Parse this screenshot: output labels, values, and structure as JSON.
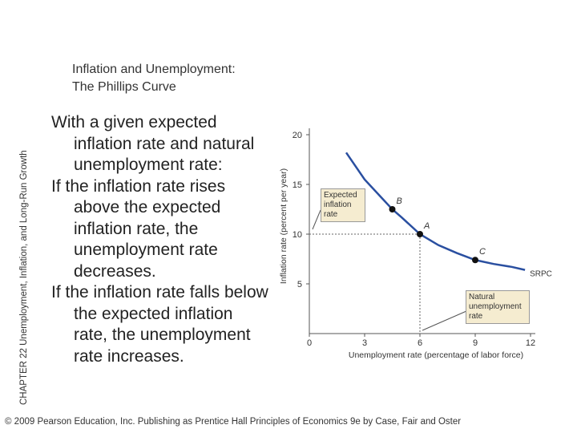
{
  "header": {
    "title": [
      "Inflation and Unemployment:",
      "The Phillips Curve"
    ],
    "side_label": "CHAPTER 22 Unemployment, Inflation, and Long-Run Growth"
  },
  "body": [
    "With a given expected inflation rate and natural unemployment rate:",
    "If the inflation rate rises above the expected inflation rate, the unemployment rate decreases.",
    "If the inflation rate falls below the expected inflation rate, the unemployment rate increases."
  ],
  "footer": "© 2009 Pearson Education, Inc. Publishing as Prentice Hall   Principles of Economics 9e by Case, Fair and Oster",
  "chart_data": {
    "type": "line",
    "x_label": "Unemployment rate (percentage of labor force)",
    "y_label": "Inflation rate (percent per year)",
    "xlim": [
      0,
      12
    ],
    "ylim": [
      0,
      20
    ],
    "xticks": [
      0,
      3,
      6,
      9,
      12
    ],
    "yticks": [
      5,
      10,
      15,
      20
    ],
    "x": [
      2,
      3,
      4,
      4.5,
      5,
      6,
      7,
      8,
      9,
      10,
      11,
      11.7
    ],
    "series": [
      {
        "name": "SRPC",
        "color": "#2a4fa0",
        "values": [
          18.2,
          15.5,
          13.5,
          12.5,
          11.7,
          10,
          8.9,
          8.1,
          7.4,
          7,
          6.7,
          6.4
        ]
      }
    ],
    "points": [
      {
        "label": "B",
        "x": 4.5,
        "y": 12.5
      },
      {
        "label": "A",
        "x": 6,
        "y": 10
      },
      {
        "label": "C",
        "x": 9,
        "y": 7.4
      }
    ],
    "annotations": [
      "Expected inflation rate",
      "Natural unemployment rate"
    ]
  }
}
